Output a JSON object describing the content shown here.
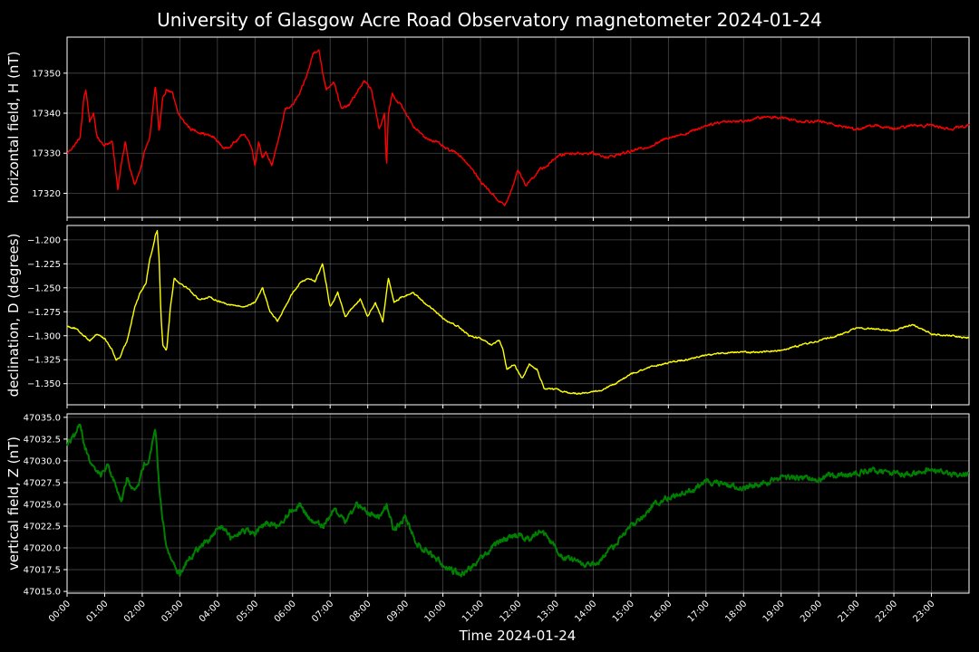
{
  "chart_data": {
    "type": "line",
    "title": "University of Glasgow Acre Road Observatory magnetometer 2024-01-24",
    "xlabel": "Time 2024-01-24",
    "x_range_hours": [
      0,
      24
    ],
    "x_tick_labels": [
      "00:00",
      "01:00",
      "02:00",
      "03:00",
      "04:00",
      "05:00",
      "06:00",
      "07:00",
      "08:00",
      "09:00",
      "10:00",
      "11:00",
      "12:00",
      "13:00",
      "14:00",
      "15:00",
      "16:00",
      "17:00",
      "18:00",
      "19:00",
      "20:00",
      "21:00",
      "22:00",
      "23:00"
    ],
    "grid": true,
    "panels": [
      {
        "ylabel": "horizontal field, H (nT)",
        "color": "#ff0000",
        "ylim": [
          17314,
          17359
        ],
        "y_ticks": [
          17320,
          17330,
          17340,
          17350
        ],
        "y_tick_labels": [
          "17320",
          "17330",
          "17340",
          "17350"
        ],
        "noise": 0.6,
        "series": {
          "x": [
            0.0,
            0.2,
            0.35,
            0.45,
            0.5,
            0.55,
            0.6,
            0.7,
            0.8,
            1.0,
            1.2,
            1.35,
            1.45,
            1.55,
            1.65,
            1.8,
            1.95,
            2.05,
            2.2,
            2.35,
            2.45,
            2.55,
            2.65,
            2.8,
            2.95,
            3.1,
            3.3,
            3.6,
            3.9,
            4.2,
            4.5,
            4.7,
            4.9,
            5.0,
            5.1,
            5.2,
            5.3,
            5.45,
            5.55,
            5.65,
            5.8,
            6.0,
            6.2,
            6.4,
            6.55,
            6.7,
            6.8,
            6.9,
            7.1,
            7.3,
            7.5,
            7.7,
            7.9,
            8.1,
            8.3,
            8.45,
            8.5,
            8.55,
            8.65,
            8.75,
            8.9,
            9.2,
            9.5,
            9.8,
            10.1,
            10.4,
            10.7,
            11.0,
            11.3,
            11.5,
            11.65,
            11.8,
            12.0,
            12.2,
            12.4,
            12.6,
            12.8,
            13.0,
            13.3,
            13.6,
            14.0,
            14.4,
            14.8,
            15.2,
            15.6,
            16.0,
            16.5,
            17.0,
            17.5,
            18.0,
            18.5,
            19.0,
            19.5,
            20.0,
            20.5,
            21.0,
            21.5,
            22.0,
            22.5,
            23.0,
            23.5,
            24.0
          ],
          "values": [
            17330,
            17332,
            17334,
            17344,
            17346,
            17342,
            17338,
            17340,
            17334,
            17332,
            17333,
            17321,
            17328,
            17333,
            17327,
            17322,
            17326,
            17330,
            17334,
            17347,
            17335,
            17344,
            17346,
            17345,
            17340,
            17338,
            17336,
            17335,
            17334,
            17331,
            17333,
            17335,
            17332,
            17327,
            17333,
            17329,
            17330,
            17327,
            17331,
            17334,
            17341,
            17342,
            17345,
            17350,
            17355,
            17356,
            17350,
            17346,
            17348,
            17341,
            17342,
            17345,
            17348,
            17346,
            17336,
            17340,
            17326,
            17340,
            17345,
            17343,
            17342,
            17337,
            17334,
            17333,
            17331,
            17330,
            17327,
            17323,
            17320,
            17318,
            17317,
            17320,
            17326,
            17322,
            17324,
            17326,
            17327,
            17329,
            17330,
            17330,
            17330,
            17329,
            17330,
            17331,
            17332,
            17334,
            17335,
            17337,
            17338,
            17338,
            17339,
            17339,
            17338,
            17338,
            17337,
            17336,
            17337,
            17336,
            17337,
            17337,
            17336,
            17337
          ]
        }
      },
      {
        "ylabel": "declination, D (degrees)",
        "color": "#ffff00",
        "ylim": [
          -1.372,
          -1.185
        ],
        "y_ticks": [
          -1.35,
          -1.325,
          -1.3,
          -1.275,
          -1.25,
          -1.225,
          -1.2
        ],
        "y_tick_labels": [
          "−1.350",
          "−1.325",
          "−1.300",
          "−1.275",
          "−1.250",
          "−1.225",
          "−1.200"
        ],
        "noise": 0.0015,
        "series": {
          "x": [
            0.0,
            0.2,
            0.4,
            0.6,
            0.8,
            1.0,
            1.2,
            1.3,
            1.4,
            1.6,
            1.8,
            1.95,
            2.1,
            2.2,
            2.3,
            2.35,
            2.4,
            2.45,
            2.5,
            2.55,
            2.65,
            2.75,
            2.85,
            3.0,
            3.2,
            3.5,
            3.8,
            4.1,
            4.4,
            4.7,
            5.0,
            5.2,
            5.4,
            5.6,
            5.8,
            6.0,
            6.2,
            6.4,
            6.6,
            6.8,
            7.0,
            7.2,
            7.4,
            7.6,
            7.8,
            8.0,
            8.2,
            8.4,
            8.55,
            8.7,
            8.9,
            9.2,
            9.5,
            9.8,
            10.1,
            10.4,
            10.7,
            11.0,
            11.3,
            11.5,
            11.6,
            11.7,
            11.9,
            12.1,
            12.3,
            12.5,
            12.7,
            13.0,
            13.4,
            13.8,
            14.2,
            14.6,
            15.0,
            15.5,
            16.0,
            16.5,
            17.0,
            17.5,
            18.0,
            18.5,
            19.0,
            19.5,
            20.0,
            20.5,
            21.0,
            21.5,
            22.0,
            22.5,
            23.0,
            23.5,
            24.0
          ],
          "values": [
            -1.29,
            -1.292,
            -1.298,
            -1.305,
            -1.298,
            -1.303,
            -1.315,
            -1.325,
            -1.323,
            -1.305,
            -1.27,
            -1.255,
            -1.245,
            -1.22,
            -1.205,
            -1.195,
            -1.19,
            -1.22,
            -1.28,
            -1.31,
            -1.315,
            -1.27,
            -1.24,
            -1.245,
            -1.25,
            -1.262,
            -1.26,
            -1.265,
            -1.268,
            -1.27,
            -1.265,
            -1.25,
            -1.275,
            -1.285,
            -1.27,
            -1.255,
            -1.245,
            -1.24,
            -1.243,
            -1.225,
            -1.27,
            -1.255,
            -1.28,
            -1.27,
            -1.262,
            -1.28,
            -1.265,
            -1.285,
            -1.24,
            -1.265,
            -1.26,
            -1.255,
            -1.265,
            -1.275,
            -1.285,
            -1.29,
            -1.3,
            -1.303,
            -1.31,
            -1.305,
            -1.315,
            -1.335,
            -1.33,
            -1.345,
            -1.33,
            -1.335,
            -1.355,
            -1.356,
            -1.36,
            -1.36,
            -1.357,
            -1.35,
            -1.34,
            -1.333,
            -1.328,
            -1.325,
            -1.32,
            -1.318,
            -1.317,
            -1.317,
            -1.315,
            -1.31,
            -1.305,
            -1.3,
            -1.292,
            -1.293,
            -1.295,
            -1.288,
            -1.298,
            -1.3,
            -1.302
          ]
        }
      },
      {
        "ylabel": "vertical field, Z (nT)",
        "color": "#008000",
        "ylim": [
          47014.8,
          47035.4
        ],
        "y_ticks": [
          47015.0,
          47017.5,
          47020.0,
          47022.5,
          47025.0,
          47027.5,
          47030.0,
          47032.5,
          47035.0
        ],
        "y_tick_labels": [
          "47015.0",
          "47017.5",
          "47020.0",
          "47022.5",
          "47025.0",
          "47027.5",
          "47030.0",
          "47032.5",
          "47035.0"
        ],
        "noise": 0.6,
        "series": {
          "x": [
            0.0,
            0.25,
            0.35,
            0.45,
            0.55,
            0.7,
            0.9,
            1.1,
            1.3,
            1.45,
            1.6,
            1.75,
            1.9,
            2.05,
            2.2,
            2.35,
            2.45,
            2.55,
            2.65,
            2.75,
            2.85,
            3.0,
            3.2,
            3.5,
            3.8,
            4.1,
            4.4,
            4.7,
            5.0,
            5.3,
            5.6,
            5.9,
            6.2,
            6.5,
            6.8,
            7.1,
            7.4,
            7.7,
            8.0,
            8.3,
            8.5,
            8.7,
            9.0,
            9.3,
            9.6,
            9.9,
            10.2,
            10.5,
            10.8,
            11.1,
            11.4,
            11.7,
            12.0,
            12.3,
            12.6,
            12.9,
            13.2,
            13.5,
            13.8,
            14.1,
            14.4,
            14.7,
            15.0,
            15.4,
            15.8,
            16.2,
            16.6,
            17.0,
            17.4,
            17.8,
            18.2,
            18.6,
            19.0,
            19.5,
            20.0,
            20.5,
            21.0,
            21.5,
            22.0,
            22.5,
            23.0,
            23.5,
            24.0
          ],
          "values": [
            47032.0,
            47033.0,
            47034.5,
            47032.0,
            47030.5,
            47029.0,
            47028.5,
            47029.5,
            47027.0,
            47025.5,
            47028.0,
            47026.5,
            47027.5,
            47029.5,
            47030.5,
            47034.0,
            47027.0,
            47023.0,
            47020.0,
            47019.0,
            47018.0,
            47017.0,
            47018.5,
            47020.0,
            47021.0,
            47022.5,
            47021.0,
            47022.0,
            47021.5,
            47023.0,
            47022.5,
            47024.0,
            47025.0,
            47023.0,
            47022.5,
            47024.5,
            47023.0,
            47025.0,
            47024.0,
            47023.5,
            47025.0,
            47022.0,
            47023.5,
            47020.5,
            47019.5,
            47018.5,
            47017.5,
            47017.0,
            47018.0,
            47019.0,
            47020.5,
            47021.0,
            47021.5,
            47021.0,
            47022.0,
            47020.5,
            47019.0,
            47018.5,
            47018.0,
            47018.0,
            47019.5,
            47021.0,
            47022.5,
            47024.0,
            47025.5,
            47026.0,
            47026.5,
            47027.5,
            47027.5,
            47027.0,
            47027.0,
            47027.5,
            47028.0,
            47028.0,
            47028.0,
            47028.5,
            47028.5,
            47029.0,
            47028.5,
            47028.5,
            47029.0,
            47028.5,
            47028.5
          ]
        }
      }
    ]
  }
}
